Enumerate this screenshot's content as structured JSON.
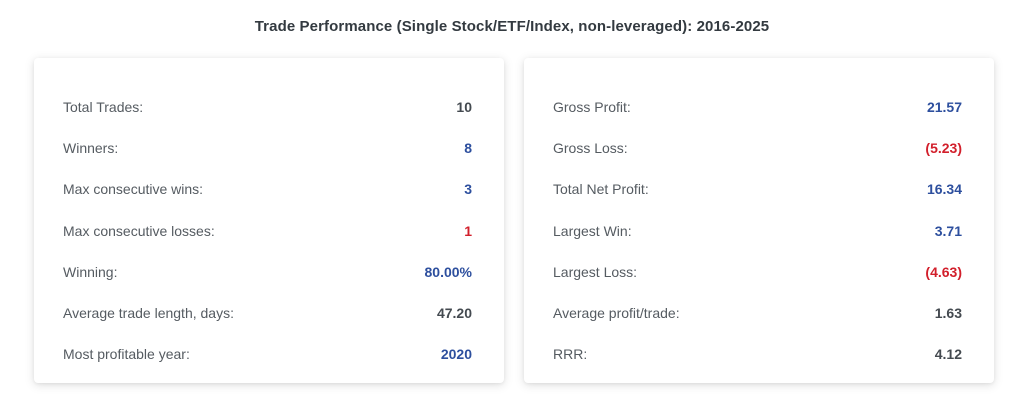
{
  "title": "Trade Performance (Single Stock/ETF/Index, non-leveraged): 2016-2025",
  "colors": {
    "positive": "#2d4f9e",
    "negative": "#d21f2b",
    "neutral": "#444a50",
    "label": "#555b61"
  },
  "left_card": {
    "rows": [
      {
        "label": "Total Trades:",
        "value": "10",
        "tone": "neutral"
      },
      {
        "label": "Winners:",
        "value": "8",
        "tone": "pos"
      },
      {
        "label": "Max consecutive wins:",
        "value": "3",
        "tone": "pos"
      },
      {
        "label": "Max consecutive losses:",
        "value": "1",
        "tone": "neg"
      },
      {
        "label": "Winning:",
        "value": "80.00%",
        "tone": "pos"
      },
      {
        "label": "Average trade length, days:",
        "value": "47.20",
        "tone": "neutral"
      },
      {
        "label": "Most profitable year:",
        "value": "2020",
        "tone": "pos"
      }
    ]
  },
  "right_card": {
    "rows": [
      {
        "label": "Gross Profit:",
        "value": "21.57",
        "tone": "pos"
      },
      {
        "label": "Gross Loss:",
        "value": "(5.23)",
        "tone": "neg"
      },
      {
        "label": "Total Net Profit:",
        "value": "16.34",
        "tone": "pos"
      },
      {
        "label": "Largest Win:",
        "value": "3.71",
        "tone": "pos"
      },
      {
        "label": "Largest Loss:",
        "value": "(4.63)",
        "tone": "neg"
      },
      {
        "label": "Average profit/trade:",
        "value": "1.63",
        "tone": "neutral"
      },
      {
        "label": "RRR:",
        "value": "4.12",
        "tone": "neutral"
      }
    ]
  }
}
